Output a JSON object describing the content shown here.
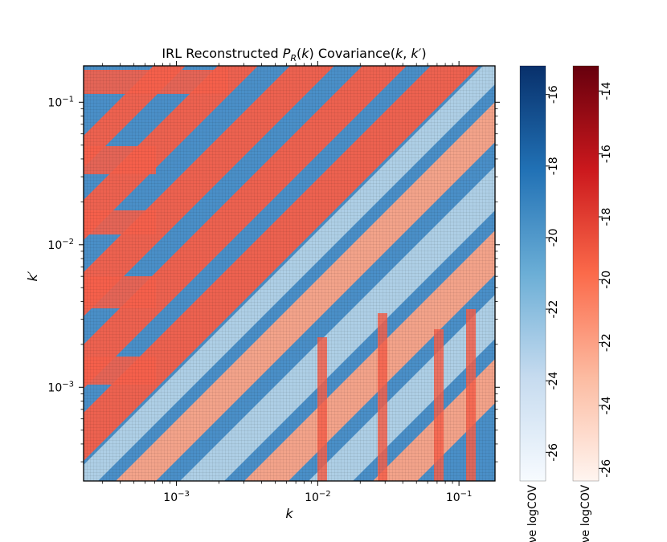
{
  "chart_data": {
    "type": "heatmap",
    "title_plain": "IRL Reconstructed ",
    "title_math": "P",
    "title_sub": "R",
    "title_rest_1": "(",
    "title_k": "k",
    "title_rest_2": ") Covariance(",
    "title_k2": "k",
    "title_comma": ", ",
    "title_kprime": "k′",
    "title_close": ")",
    "xlabel": "k",
    "ylabel": "k′",
    "xscale": "log",
    "yscale": "log",
    "xlim": [
      0.00022,
      0.18
    ],
    "ylim": [
      0.00022,
      0.18
    ],
    "x_ticks": [
      {
        "value": 0.001,
        "base": "10",
        "exp": "−3"
      },
      {
        "value": 0.01,
        "base": "10",
        "exp": "−2"
      },
      {
        "value": 0.1,
        "base": "10",
        "exp": "−1"
      }
    ],
    "y_ticks": [
      {
        "value": 0.001,
        "base": "10",
        "exp": "−3"
      },
      {
        "value": 0.01,
        "base": "10",
        "exp": "−2"
      },
      {
        "value": 0.1,
        "base": "10",
        "exp": "−1"
      }
    ],
    "description_of_structure": "diagonal alternating bands: positive covariance (red) and negative covariance (blue) in log-magnitude",
    "colorbars": [
      {
        "name": "negative",
        "colormap": "Blues",
        "label": "νe logCOV",
        "range": [
          -26.8,
          -15.2
        ],
        "ticks": [
          "-16",
          "-18",
          "-20",
          "-22",
          "-24",
          "-26"
        ],
        "tick_values": [
          -16,
          -18,
          -20,
          -22,
          -24,
          -26
        ]
      },
      {
        "name": "positive",
        "colormap": "Reds",
        "label": "νe logCOV",
        "range": [
          -26.4,
          -13.2
        ],
        "ticks": [
          "-14",
          "-16",
          "-18",
          "-20",
          "-22",
          "-24",
          "-26"
        ],
        "tick_values": [
          -14,
          -16,
          -18,
          -20,
          -22,
          -24,
          -26
        ]
      }
    ],
    "colors": {
      "red_main": "#f5604a",
      "red_light": "#fca487",
      "red_dark": "#c3161b",
      "blue_main": "#4a8fc8",
      "blue_light": "#b3d3e8",
      "blue_dark": "#1f5a9c"
    }
  }
}
